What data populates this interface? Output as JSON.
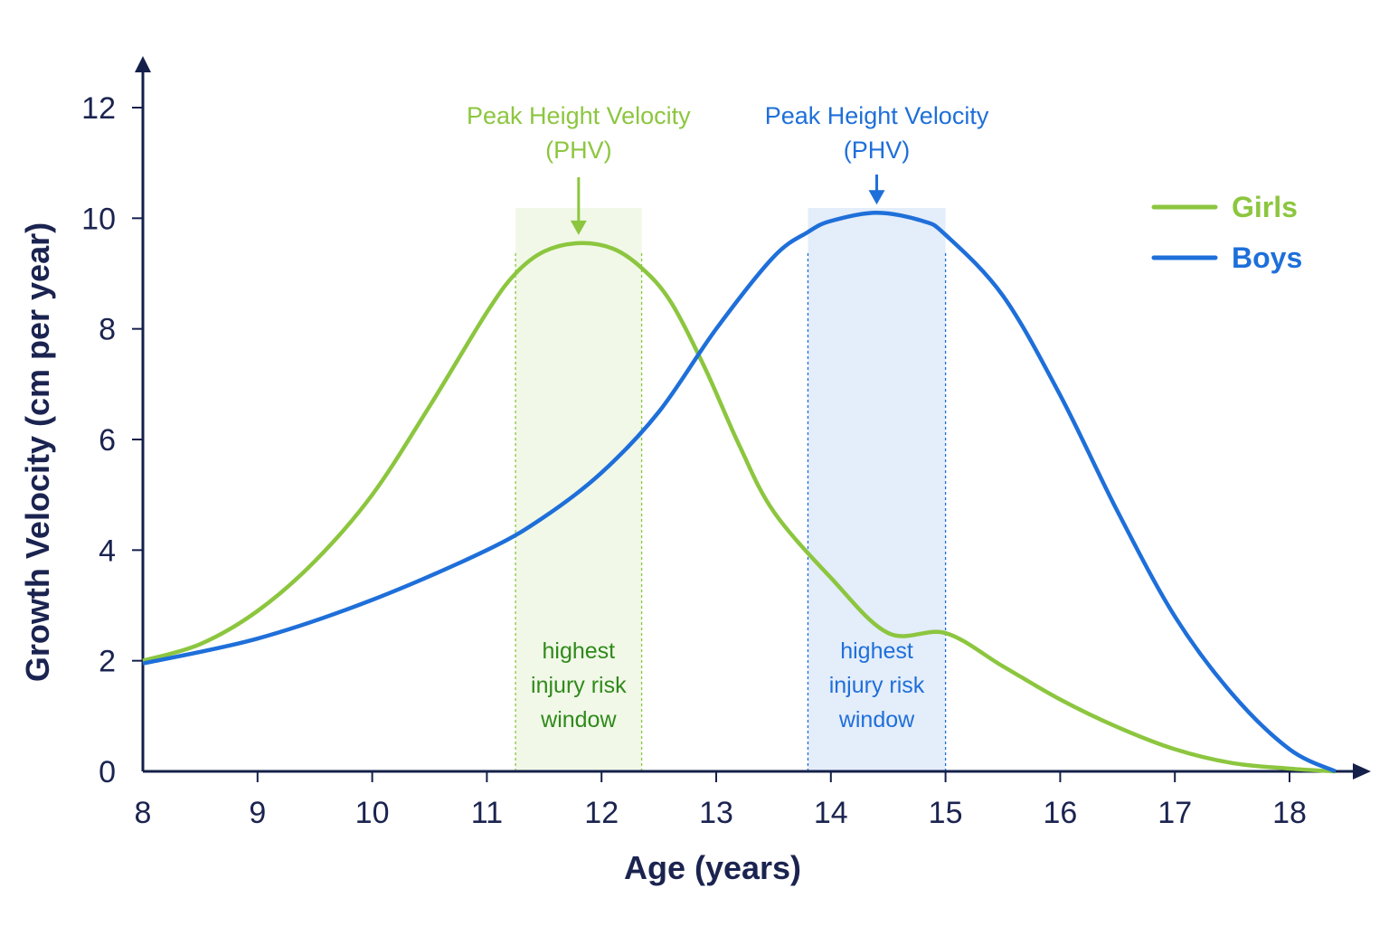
{
  "chart_data": {
    "type": "line",
    "title": "",
    "xlabel": "Age (years)",
    "ylabel": "Growth Velocity (cm per year)",
    "xlim": [
      8,
      18.4
    ],
    "ylim": [
      0,
      12
    ],
    "x_ticks": [
      8,
      9,
      10,
      11,
      12,
      13,
      14,
      15,
      16,
      17,
      18
    ],
    "y_ticks": [
      0,
      2,
      4,
      6,
      8,
      10,
      12
    ],
    "grid": false,
    "legend_position": "top-right",
    "series": [
      {
        "name": "Girls",
        "color": "#8cc63f",
        "x": [
          8,
          8.5,
          9,
          9.5,
          10,
          10.5,
          11,
          11.25,
          11.5,
          11.8,
          12.1,
          12.35,
          12.6,
          12.9,
          13.2,
          13.5,
          14,
          14.5,
          15,
          15.5,
          16,
          16.5,
          17,
          17.5,
          18,
          18.4
        ],
        "y": [
          2.0,
          2.3,
          2.9,
          3.8,
          5.0,
          6.6,
          8.3,
          9.0,
          9.4,
          9.55,
          9.45,
          9.1,
          8.5,
          7.3,
          5.9,
          4.7,
          3.5,
          2.5,
          2.5,
          1.9,
          1.3,
          0.8,
          0.4,
          0.15,
          0.05,
          0.0
        ]
      },
      {
        "name": "Boys",
        "color": "#1e6fd9",
        "x": [
          8,
          9,
          10,
          11,
          11.5,
          12,
          12.5,
          13,
          13.5,
          13.8,
          14,
          14.4,
          14.8,
          15,
          15.5,
          16,
          16.5,
          17,
          17.5,
          18,
          18.4
        ],
        "y": [
          1.95,
          2.4,
          3.1,
          4.0,
          4.6,
          5.4,
          6.5,
          8.0,
          9.3,
          9.75,
          9.95,
          10.1,
          9.95,
          9.7,
          8.6,
          6.8,
          4.7,
          2.8,
          1.4,
          0.4,
          0.0
        ]
      }
    ],
    "bands": [
      {
        "x_start": 11.25,
        "x_end": 12.35,
        "label_lines": [
          "highest",
          "injury risk",
          "window"
        ],
        "color": "#8cc63f",
        "text_color": "#2f8a1a"
      },
      {
        "x_start": 13.8,
        "x_end": 15.0,
        "label_lines": [
          "highest",
          "injury risk",
          "window"
        ],
        "color": "#1e6fd9",
        "text_color": "#1e6fd9"
      }
    ],
    "annotations": [
      {
        "lines": [
          "Peak Height Velocity",
          "(PHV)"
        ],
        "x": 11.8,
        "color": "#8cc63f",
        "peak_y": 9.55
      },
      {
        "lines": [
          "Peak Height Velocity",
          "(PHV)"
        ],
        "x": 14.4,
        "color": "#1e6fd9",
        "peak_y": 10.1
      }
    ],
    "axis_color": "#14204a"
  }
}
